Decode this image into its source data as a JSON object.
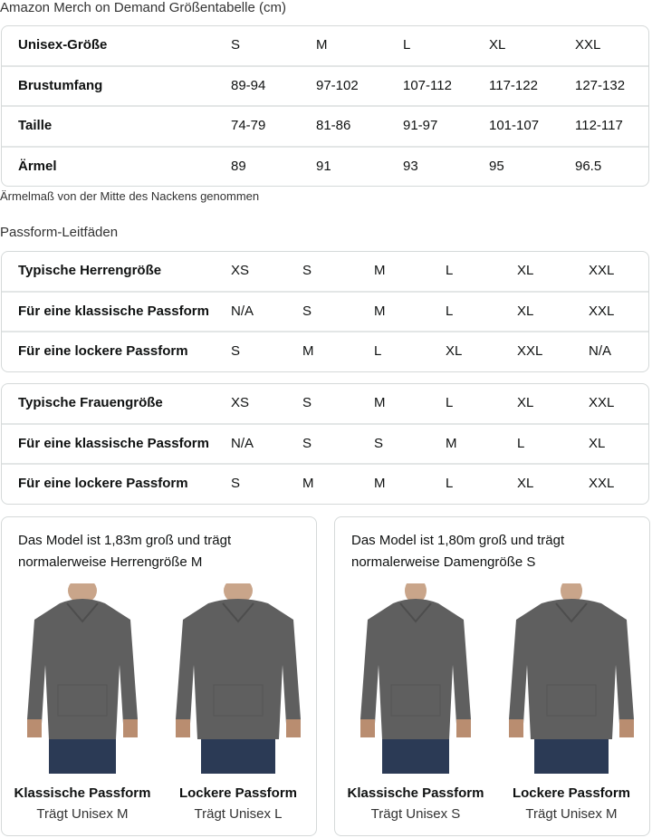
{
  "title": "Amazon Merch on Demand Größentabelle (cm)",
  "size_table": {
    "rows": [
      {
        "label": "Unisex-Größe",
        "values": [
          "S",
          "M",
          "L",
          "XL",
          "XXL"
        ]
      },
      {
        "label": "Brustumfang",
        "values": [
          "89-94",
          "97-102",
          "107-112",
          "117-122",
          "127-132"
        ]
      },
      {
        "label": "Taille",
        "values": [
          "74-79",
          "81-86",
          "91-97",
          "101-107",
          "112-117"
        ]
      },
      {
        "label": "Ärmel",
        "values": [
          "89",
          "91",
          "93",
          "95",
          "96.5"
        ]
      }
    ]
  },
  "note": "Ärmelmaß von der Mitte des Nackens genommen",
  "fit_title": "Passform-Leitfäden",
  "men_table": {
    "rows": [
      {
        "label": "Typische Herrengröße",
        "values": [
          "XS",
          "S",
          "M",
          "L",
          "XL",
          "XXL"
        ]
      },
      {
        "label": "Für eine klassische Passform",
        "values": [
          "N/A",
          "S",
          "M",
          "L",
          "XL",
          "XXL"
        ]
      },
      {
        "label": "Für eine lockere Passform",
        "values": [
          "S",
          "M",
          "L",
          "XL",
          "XXL",
          "N/A"
        ]
      }
    ]
  },
  "women_table": {
    "rows": [
      {
        "label": "Typische Frauengröße",
        "values": [
          "XS",
          "S",
          "M",
          "L",
          "XL",
          "XXL"
        ]
      },
      {
        "label": "Für eine klassische Passform",
        "values": [
          "N/A",
          "S",
          "S",
          "M",
          "L",
          "XL"
        ]
      },
      {
        "label": "Für eine lockere Passform",
        "values": [
          "S",
          "M",
          "M",
          "L",
          "XL",
          "XXL"
        ]
      }
    ]
  },
  "cards": [
    {
      "text": "Das Model ist 1,83m groß und trägt normalerweise Herrengröße M",
      "figures": [
        {
          "label": "Klassische Passform",
          "sub": "Trägt Unisex M"
        },
        {
          "label": "Lockere Passform",
          "sub": "Trägt Unisex L"
        }
      ]
    },
    {
      "text": "Das Model ist 1,80m groß und trägt normalerweise Damengröße S",
      "figures": [
        {
          "label": "Klassische Passform",
          "sub": "Trägt Unisex S"
        },
        {
          "label": "Lockere Passform",
          "sub": "Trägt Unisex M"
        }
      ]
    }
  ],
  "colors": {
    "hoodie": "#5f5f5f",
    "jeans": "#2b3a55",
    "border": "#d5d9d9"
  }
}
